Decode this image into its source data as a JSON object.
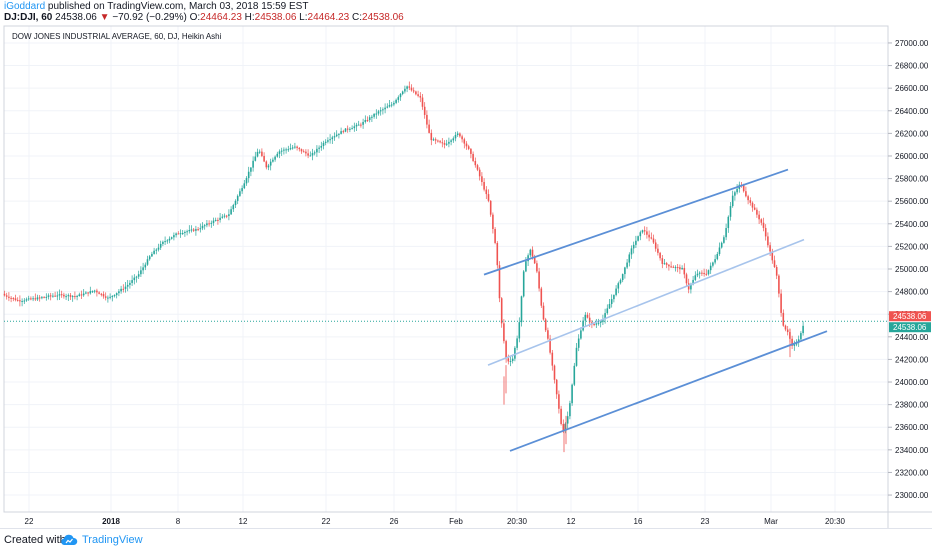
{
  "header": {
    "author": "iGoddard",
    "published": "published on TradingView.com, March 03, 2018 15:59 EST",
    "symbol": "DJ:DJI, 60",
    "last": "24538.06",
    "change": "−70.92 (−0.29%)",
    "o_label": "O:",
    "o_value": "24464.23",
    "h_label": "H:",
    "h_value": "24538.06",
    "l_label": "L:",
    "l_value": "24464.23",
    "c_label": "C:",
    "c_value": "24538.06"
  },
  "footer": {
    "created_with": "Created with",
    "brand": "TradingView"
  },
  "colors": {
    "up": "#26a69a",
    "down": "#ef5350",
    "channel": "#5b8fd6",
    "midline": "#a7c4ec",
    "price_line": "#26a69a",
    "grid": "#f0f3f8"
  },
  "chart_data": {
    "type": "candlestick",
    "title": "DOW JONES INDUSTRIAL AVERAGE, 60, DJ, Heikin Ashi",
    "ylim": [
      22850,
      27150
    ],
    "y_ticks": [
      23000,
      23200,
      23400,
      23600,
      23800,
      24000,
      24200,
      24400,
      24600,
      24800,
      25000,
      25200,
      25400,
      25600,
      25800,
      26000,
      26200,
      26400,
      26600,
      26800,
      27000
    ],
    "y_tick_labels": [
      "23000.00",
      "23200.00",
      "23400.00",
      "23600.00",
      "23800.00",
      "24000.00",
      "24200.00",
      "24400.00",
      "24600.00",
      "24800.00",
      "25000.00",
      "25200.00",
      "25400.00",
      "25600.00",
      "25800.00",
      "26000.00",
      "26200.00",
      "26400.00",
      "26600.00",
      "26800.00",
      "27000.00"
    ],
    "x_ticks": [
      "22",
      "2018",
      "8",
      "12",
      "22",
      "26",
      "Feb",
      "20:30",
      "12",
      "16",
      "23",
      "Mar",
      "20:30"
    ],
    "price_labels": [
      "24538.06",
      "24538.06"
    ],
    "last_price": 24538.06,
    "path": [
      [
        0,
        24780
      ],
      [
        18,
        24720
      ],
      [
        36,
        24740
      ],
      [
        56,
        24770
      ],
      [
        76,
        24760
      ],
      [
        94,
        24810
      ],
      [
        108,
        24740
      ],
      [
        126,
        24850
      ],
      [
        138,
        24950
      ],
      [
        150,
        25120
      ],
      [
        163,
        25240
      ],
      [
        178,
        25320
      ],
      [
        196,
        25350
      ],
      [
        212,
        25420
      ],
      [
        228,
        25480
      ],
      [
        243,
        25750
      ],
      [
        258,
        26060
      ],
      [
        266,
        25900
      ],
      [
        278,
        26040
      ],
      [
        294,
        26080
      ],
      [
        310,
        26000
      ],
      [
        326,
        26140
      ],
      [
        344,
        26230
      ],
      [
        360,
        26280
      ],
      [
        376,
        26380
      ],
      [
        392,
        26460
      ],
      [
        406,
        26620
      ],
      [
        420,
        26510
      ],
      [
        430,
        26150
      ],
      [
        444,
        26100
      ],
      [
        458,
        26200
      ],
      [
        468,
        26060
      ],
      [
        478,
        25850
      ],
      [
        488,
        25600
      ],
      [
        496,
        25150
      ],
      [
        500,
        24600
      ],
      [
        506,
        24180
      ],
      [
        512,
        24200
      ],
      [
        518,
        24450
      ],
      [
        524,
        25050
      ],
      [
        530,
        25170
      ],
      [
        536,
        25000
      ],
      [
        542,
        24600
      ],
      [
        548,
        24350
      ],
      [
        556,
        23900
      ],
      [
        562,
        23550
      ],
      [
        568,
        23720
      ],
      [
        576,
        24300
      ],
      [
        584,
        24600
      ],
      [
        592,
        24500
      ],
      [
        602,
        24550
      ],
      [
        612,
        24750
      ],
      [
        622,
        24950
      ],
      [
        632,
        25200
      ],
      [
        642,
        25350
      ],
      [
        652,
        25250
      ],
      [
        662,
        25050
      ],
      [
        672,
        25020
      ],
      [
        682,
        25000
      ],
      [
        688,
        24820
      ],
      [
        696,
        24960
      ],
      [
        706,
        24960
      ],
      [
        714,
        25080
      ],
      [
        724,
        25300
      ],
      [
        732,
        25640
      ],
      [
        740,
        25760
      ],
      [
        746,
        25640
      ],
      [
        754,
        25520
      ],
      [
        762,
        25390
      ],
      [
        768,
        25200
      ],
      [
        776,
        24950
      ],
      [
        782,
        24520
      ],
      [
        788,
        24420
      ],
      [
        792,
        24300
      ],
      [
        798,
        24380
      ],
      [
        804,
        24530
      ]
    ],
    "lines": [
      {
        "name": "",
        "role": "channel-upper",
        "x1": 484,
        "y1": 24950,
        "x2": 788,
        "y2": 25880
      },
      {
        "name": "",
        "role": "channel-mid",
        "x1": 488,
        "y1": 24150,
        "x2": 804,
        "y2": 25260
      },
      {
        "name": "",
        "role": "channel-lower",
        "x1": 510,
        "y1": 23390,
        "x2": 827,
        "y2": 24450
      }
    ]
  }
}
